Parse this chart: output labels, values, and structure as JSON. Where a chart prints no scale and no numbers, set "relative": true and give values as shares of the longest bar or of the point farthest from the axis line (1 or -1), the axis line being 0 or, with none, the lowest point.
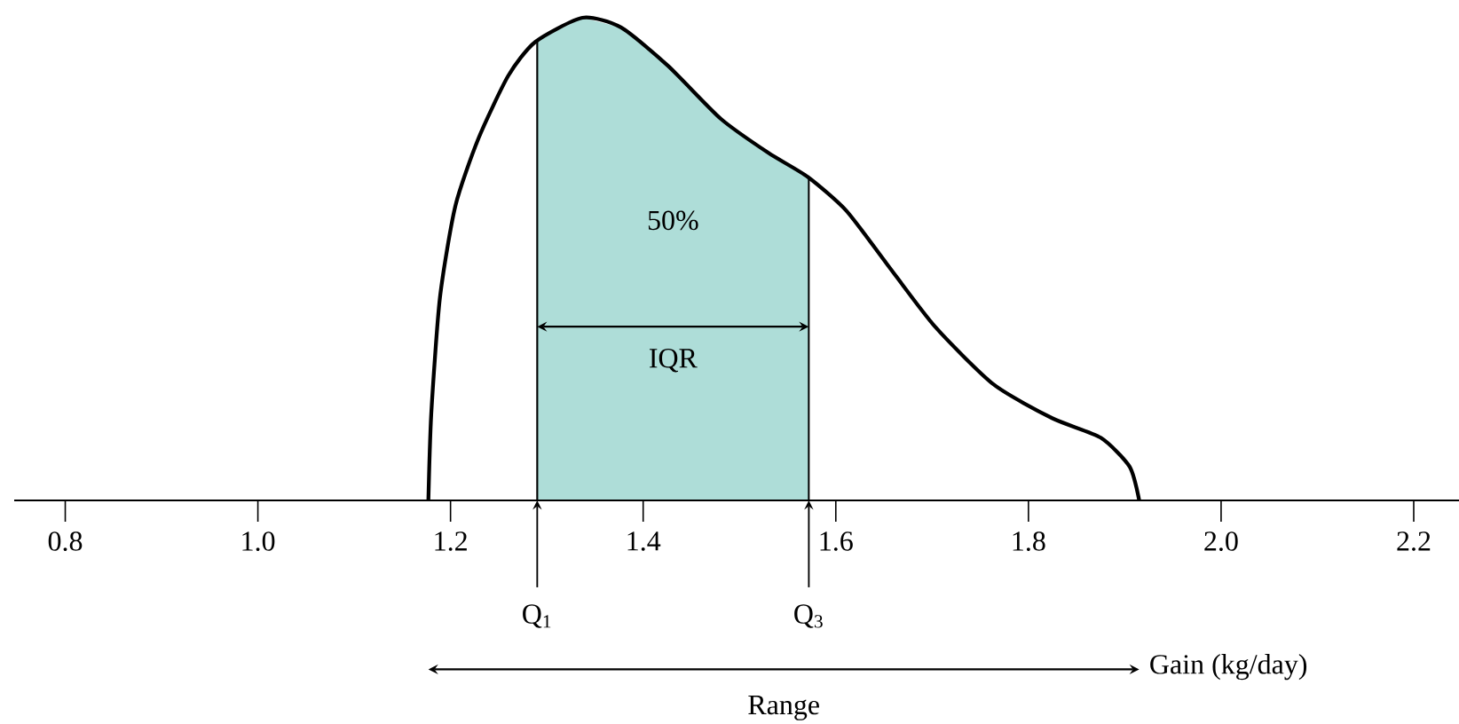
{
  "chart_data": {
    "type": "line",
    "relative": true,
    "xlabel": "Gain (kg/day)",
    "xlim": [
      0.747,
      2.247
    ],
    "xticks": [
      {
        "value": 0.8,
        "label": "0.8"
      },
      {
        "value": 1.0,
        "label": "1.0"
      },
      {
        "value": 1.2,
        "label": "1.2"
      },
      {
        "value": 1.4,
        "label": "1.4"
      },
      {
        "value": 1.6,
        "label": "1.6"
      },
      {
        "value": 1.8,
        "label": "1.8"
      },
      {
        "value": 2.0,
        "label": "2.0"
      },
      {
        "value": 2.2,
        "label": "2.2"
      }
    ],
    "series": [
      {
        "color": "#000000",
        "x": [
          1.177,
          1.18,
          1.189,
          1.205,
          1.229,
          1.26,
          1.288,
          1.337,
          1.377,
          1.426,
          1.481,
          1.53,
          1.571,
          1.611,
          1.653,
          1.703,
          1.764,
          1.825,
          1.875,
          1.905,
          1.915
        ],
        "values": [
          0,
          0.18,
          0.42,
          0.61,
          0.75,
          0.88,
          0.95,
          1.0,
          0.98,
          0.9,
          0.79,
          0.72,
          0.67,
          0.6,
          0.49,
          0.36,
          0.24,
          0.17,
          0.13,
          0.07,
          0
        ]
      }
    ],
    "bands": [
      {
        "axis": "x",
        "from": 1.29,
        "to": 1.572,
        "label": "IQR",
        "color": "#aeddd8"
      }
    ],
    "annotations": [
      "50%",
      {
        "text": "Q$_{1}$",
        "x": 1.29
      },
      {
        "text": "Q$_{3}$",
        "x": 1.572
      },
      "Range"
    ],
    "grid": false,
    "marker": "none",
    "line_style": "solid"
  }
}
